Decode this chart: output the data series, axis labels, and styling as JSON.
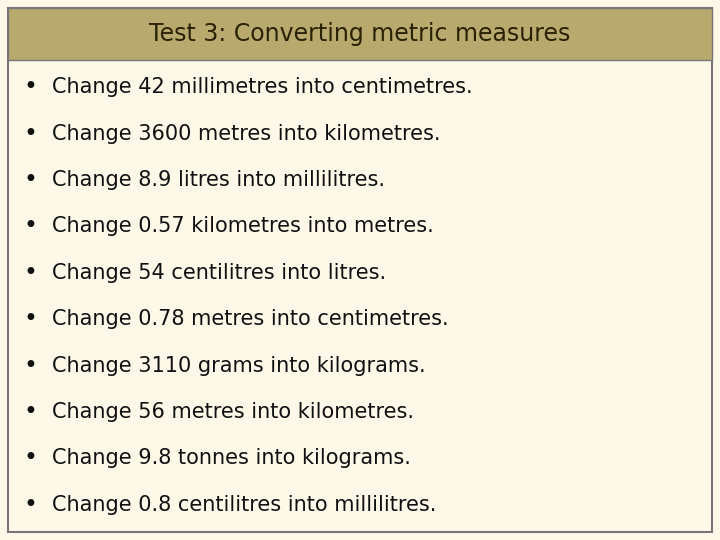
{
  "title": "Test 3: Converting metric measures",
  "title_bg_color": "#b8aa6e",
  "title_text_color": "#2a2200",
  "body_bg_color": "#fdf8e8",
  "border_color": "#777777",
  "bullet_items": [
    "Change 42 millimetres into centimetres.",
    "Change 3600 metres into kilometres.",
    "Change 8.9 litres into millilitres.",
    "Change 0.57 kilometres into metres.",
    "Change 54 centilitres into litres.",
    "Change 0.78 metres into centimetres.",
    "Change 3110 grams into kilograms.",
    "Change 56 metres into kilometres.",
    "Change 9.8 tonnes into kilograms.",
    "Change 0.8 centilitres into millilitres."
  ],
  "bullet_color": "#111111",
  "bullet_text_color": "#111111",
  "font_size_title": 17,
  "font_size_body": 15,
  "figsize": [
    7.2,
    5.4
  ],
  "dpi": 100
}
